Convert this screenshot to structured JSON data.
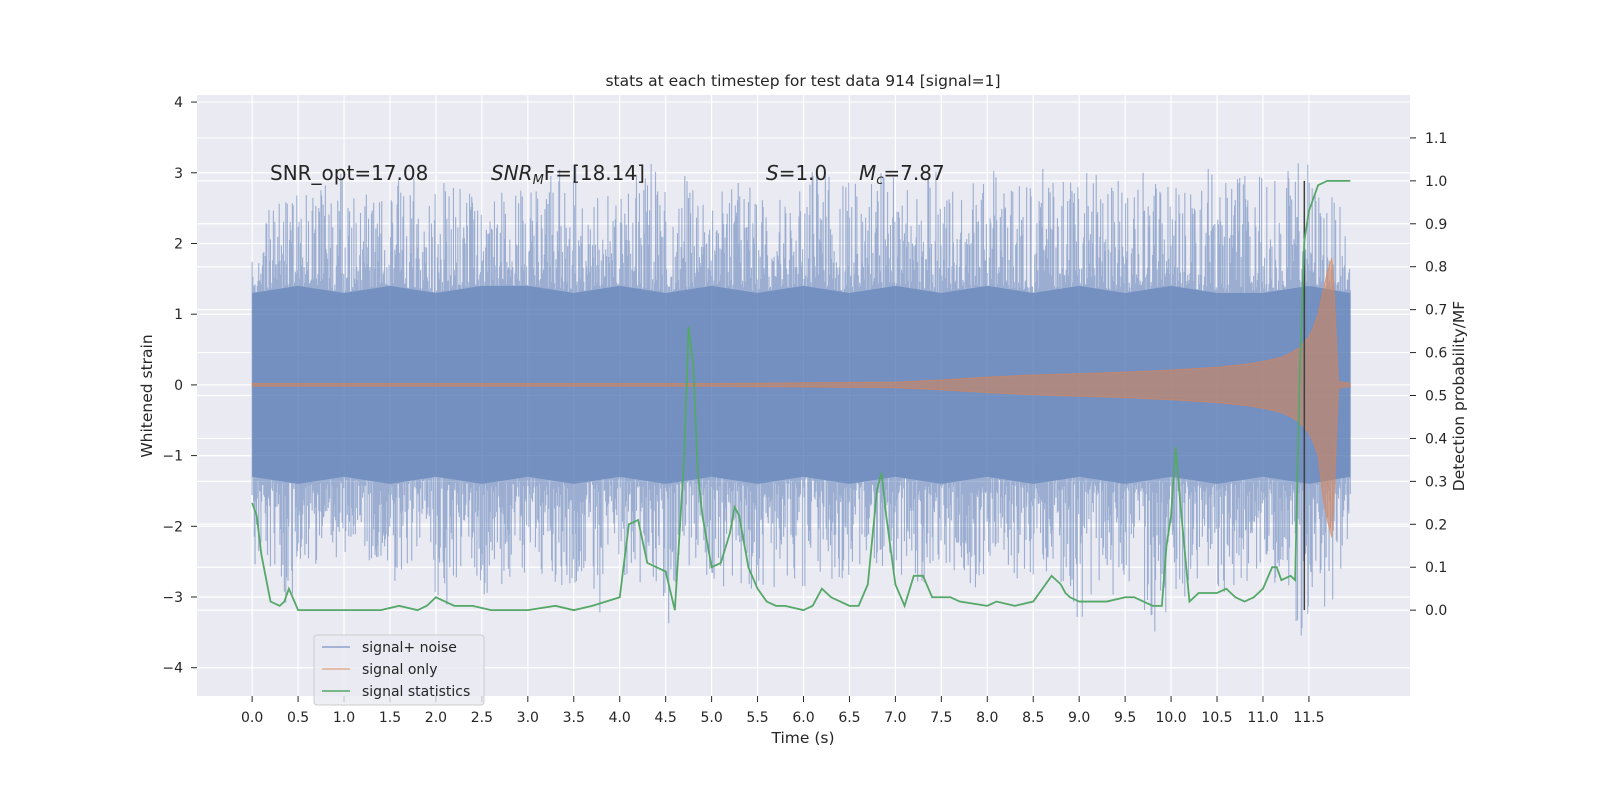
{
  "chart_data": {
    "type": "line",
    "title": "stats at each timestep for test data 914 [signal=1]",
    "xlabel": "Time (s)",
    "ylabel": "Whitened strain",
    "ylabel_right": "Detection probability/MF",
    "xlim": [
      -0.6,
      12.6
    ],
    "ylim": [
      -4.4,
      4.1
    ],
    "ylim_right": [
      -0.2,
      1.2
    ],
    "x_ticks": [
      "0.0",
      "0.5",
      "1.0",
      "1.5",
      "2.0",
      "2.5",
      "3.0",
      "3.5",
      "4.0",
      "4.5",
      "5.0",
      "5.5",
      "6.0",
      "6.5",
      "7.0",
      "7.5",
      "8.0",
      "8.5",
      "9.0",
      "9.5",
      "10.0",
      "10.5",
      "11.0",
      "11.5"
    ],
    "y_ticks": [
      "4",
      "3",
      "2",
      "1",
      "0",
      "−1",
      "−2",
      "−3",
      "−4"
    ],
    "y_tick_values": [
      4,
      3,
      2,
      1,
      0,
      -1,
      -2,
      -3,
      -4
    ],
    "y_right_ticks": [
      "1.1",
      "1.0",
      "0.9",
      "0.8",
      "0.7",
      "0.6",
      "0.5",
      "0.4",
      "0.3",
      "0.2",
      "0.1",
      "0.0"
    ],
    "y_right_tick_values": [
      1.1,
      1.0,
      0.9,
      0.8,
      0.7,
      0.6,
      0.5,
      0.4,
      0.3,
      0.2,
      0.1,
      0.0
    ],
    "grid": true,
    "legend_placement": "lower-left",
    "colors": {
      "signal_noise": "#4c72b0",
      "signal_only": "#dd8452",
      "statistics": "#55a868",
      "marker": "#404040",
      "background": "#eaeaf2"
    },
    "annotations": {
      "snr_opt": "SNR_opt=17.08",
      "snr_mf_italic": "SNR",
      "snr_mf_sub": "M",
      "snr_mf_tail": "F=[18.14]",
      "s_italic": "S",
      "s_val": "=1.0",
      "mc_italic": "M",
      "mc_sub": "c",
      "mc_val": "=7.87"
    },
    "marker_line_x": 11.45,
    "series": [
      {
        "name": "signal+ noise",
        "envelope_x": [
          0.0,
          0.05,
          0.1,
          0.15,
          0.2,
          0.3,
          0.35,
          0.4,
          0.5,
          0.55,
          0.7,
          0.85,
          1.0,
          1.1,
          1.3,
          1.45,
          1.6,
          1.8,
          1.95,
          2.05,
          2.2,
          2.4,
          2.6,
          2.8,
          3.0,
          3.2,
          3.3,
          3.45,
          3.6,
          3.7,
          3.9,
          4.1,
          4.3,
          4.4,
          4.5,
          4.7,
          4.9,
          5.1,
          5.3,
          5.45,
          5.6,
          5.8,
          6.0,
          6.2,
          6.35,
          6.5,
          6.7,
          6.9,
          7.1,
          7.3,
          7.5,
          7.7,
          7.9,
          8.1,
          8.3,
          8.5,
          8.7,
          8.9,
          9.0,
          9.2,
          9.4,
          9.5,
          9.65,
          9.75,
          9.85,
          10.0,
          10.1,
          10.2,
          10.4,
          10.6,
          10.8,
          11.0,
          11.2,
          11.35,
          11.45,
          11.55,
          11.65,
          11.75,
          11.85,
          11.95
        ],
        "envelope_max": [
          2.2,
          1.9,
          2.2,
          2.4,
          2.8,
          2.6,
          3.7,
          2.8,
          2.7,
          2.9,
          2.6,
          3.1,
          3.0,
          2.8,
          2.8,
          2.6,
          3.1,
          2.9,
          2.6,
          2.9,
          2.9,
          2.7,
          3.0,
          2.8,
          2.9,
          2.9,
          3.2,
          2.7,
          3.6,
          2.7,
          2.8,
          3.0,
          3.1,
          3.6,
          2.8,
          3.0,
          2.7,
          2.9,
          3.2,
          2.8,
          2.6,
          2.7,
          3.0,
          3.1,
          2.8,
          2.9,
          3.1,
          3.1,
          2.8,
          3.2,
          3.0,
          2.8,
          3.0,
          3.1,
          2.9,
          3.2,
          3.0,
          2.9,
          3.1,
          3.1,
          2.9,
          3.1,
          3.5,
          2.6,
          3.4,
          2.7,
          3.0,
          3.0,
          3.1,
          3.0,
          3.2,
          3.0,
          3.0,
          3.1,
          3.4,
          2.9,
          2.7,
          2.7,
          2.5,
          1.8
        ],
        "envelope_min": [
          -2.3,
          -2.7,
          -2.4,
          -2.3,
          -2.7,
          -2.9,
          -3.1,
          -3.5,
          -2.5,
          -2.5,
          -2.6,
          -2.5,
          -2.6,
          -2.4,
          -2.5,
          -2.6,
          -2.9,
          -2.5,
          -2.7,
          -3.6,
          -2.9,
          -2.6,
          -3.2,
          -2.8,
          -2.8,
          -2.7,
          -2.9,
          -3.0,
          -2.8,
          -3.6,
          -2.7,
          -2.9,
          -3.0,
          -3.0,
          -3.5,
          -2.8,
          -2.7,
          -2.9,
          -2.8,
          -2.9,
          -3.2,
          -2.7,
          -3.0,
          -2.8,
          -2.8,
          -2.7,
          -2.6,
          -2.9,
          -2.7,
          -2.9,
          -2.6,
          -2.8,
          -2.9,
          -2.8,
          -2.8,
          -2.7,
          -2.7,
          -3.0,
          -3.4,
          -2.9,
          -3.0,
          -2.7,
          -3.4,
          -3.9,
          -3.6,
          -3.0,
          -3.2,
          -2.8,
          -3.0,
          -3.0,
          -2.9,
          -2.8,
          -2.8,
          -3.4,
          -3.7,
          -3.3,
          -3.4,
          -4.0,
          -2.6,
          -2.1
        ],
        "band_min_x": [
          0.0,
          0.5,
          1.0,
          1.5,
          2.0,
          2.5,
          3.0,
          3.5,
          4.0,
          4.5,
          5.0,
          5.5,
          6.0,
          6.5,
          7.0,
          7.5,
          8.0,
          8.5,
          9.0,
          9.5,
          10.0,
          10.5,
          11.0,
          11.5,
          11.95
        ],
        "band_upper": [
          1.3,
          1.4,
          1.3,
          1.4,
          1.3,
          1.4,
          1.4,
          1.3,
          1.4,
          1.3,
          1.4,
          1.3,
          1.4,
          1.3,
          1.4,
          1.3,
          1.4,
          1.3,
          1.4,
          1.3,
          1.4,
          1.3,
          1.3,
          1.4,
          1.3
        ],
        "band_lower": [
          -1.3,
          -1.4,
          -1.3,
          -1.4,
          -1.3,
          -1.4,
          -1.3,
          -1.4,
          -1.3,
          -1.4,
          -1.3,
          -1.4,
          -1.3,
          -1.4,
          -1.3,
          -1.4,
          -1.3,
          -1.4,
          -1.3,
          -1.4,
          -1.3,
          -1.4,
          -1.3,
          -1.4,
          -1.3
        ]
      },
      {
        "name": "signal only",
        "envelope_x": [
          0.0,
          1.0,
          2.0,
          3.0,
          4.0,
          5.0,
          6.0,
          7.0,
          7.5,
          8.0,
          8.5,
          9.0,
          9.5,
          10.0,
          10.5,
          10.8,
          11.0,
          11.2,
          11.3,
          11.4,
          11.5,
          11.55,
          11.6,
          11.65,
          11.7,
          11.75,
          11.78,
          11.82,
          11.9,
          11.95
        ],
        "amplitude": [
          0.02,
          0.02,
          0.02,
          0.02,
          0.02,
          0.02,
          0.03,
          0.04,
          0.07,
          0.11,
          0.14,
          0.16,
          0.18,
          0.21,
          0.25,
          0.29,
          0.33,
          0.39,
          0.45,
          0.53,
          0.68,
          0.82,
          1.0,
          1.3,
          1.6,
          1.8,
          1.2,
          0.05,
          0.03,
          0.02
        ]
      },
      {
        "name": "signal statistics",
        "x": [
          0.0,
          0.05,
          0.1,
          0.2,
          0.3,
          0.35,
          0.4,
          0.5,
          0.6,
          0.8,
          1.0,
          1.2,
          1.4,
          1.6,
          1.8,
          1.9,
          2.0,
          2.1,
          2.2,
          2.4,
          2.6,
          3.0,
          3.3,
          3.5,
          3.7,
          4.0,
          4.1,
          4.2,
          4.3,
          4.5,
          4.6,
          4.7,
          4.75,
          4.8,
          4.85,
          4.9,
          5.0,
          5.1,
          5.2,
          5.25,
          5.3,
          5.35,
          5.4,
          5.5,
          5.6,
          5.7,
          5.8,
          6.0,
          6.1,
          6.2,
          6.3,
          6.4,
          6.5,
          6.6,
          6.7,
          6.8,
          6.85,
          6.9,
          7.0,
          7.1,
          7.2,
          7.3,
          7.4,
          7.45,
          7.5,
          7.6,
          7.7,
          8.0,
          8.1,
          8.3,
          8.5,
          8.7,
          8.8,
          8.85,
          8.9,
          9.0,
          9.1,
          9.3,
          9.5,
          9.6,
          9.7,
          9.8,
          9.9,
          9.95,
          10.0,
          10.05,
          10.1,
          10.2,
          10.3,
          10.4,
          10.5,
          10.6,
          10.7,
          10.8,
          10.9,
          11.0,
          11.1,
          11.15,
          11.2,
          11.3,
          11.35,
          11.4,
          11.45,
          11.5,
          11.55,
          11.6,
          11.7,
          11.8,
          11.95
        ],
        "y": [
          0.25,
          0.22,
          0.13,
          0.02,
          0.01,
          0.02,
          0.05,
          0.0,
          0.0,
          0.0,
          0.0,
          0.0,
          0.0,
          0.01,
          0.0,
          0.01,
          0.03,
          0.02,
          0.01,
          0.01,
          0.0,
          0.0,
          0.01,
          0.0,
          0.01,
          0.03,
          0.2,
          0.21,
          0.11,
          0.09,
          0.0,
          0.35,
          0.66,
          0.57,
          0.32,
          0.22,
          0.1,
          0.11,
          0.18,
          0.24,
          0.22,
          0.16,
          0.1,
          0.05,
          0.02,
          0.01,
          0.01,
          0.0,
          0.01,
          0.05,
          0.03,
          0.02,
          0.01,
          0.01,
          0.06,
          0.28,
          0.32,
          0.22,
          0.06,
          0.01,
          0.08,
          0.08,
          0.03,
          0.03,
          0.03,
          0.03,
          0.02,
          0.01,
          0.02,
          0.01,
          0.02,
          0.08,
          0.06,
          0.04,
          0.03,
          0.02,
          0.02,
          0.02,
          0.03,
          0.03,
          0.02,
          0.01,
          0.01,
          0.15,
          0.22,
          0.38,
          0.25,
          0.02,
          0.04,
          0.04,
          0.04,
          0.05,
          0.03,
          0.02,
          0.03,
          0.05,
          0.1,
          0.1,
          0.07,
          0.08,
          0.07,
          0.55,
          0.86,
          0.93,
          0.96,
          0.99,
          1.0,
          1.0,
          1.0
        ]
      }
    ]
  }
}
